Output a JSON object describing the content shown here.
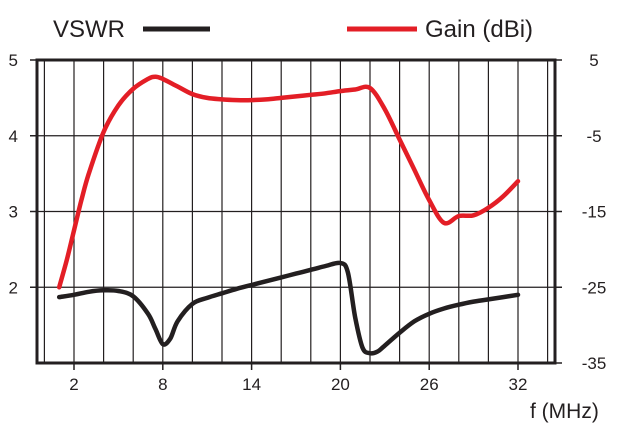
{
  "chart_data": {
    "type": "line",
    "xlabel": "f (MHz)",
    "x_ticks": [
      "2",
      "8",
      "14",
      "20",
      "26",
      "32"
    ],
    "x_tick_values": [
      2,
      8,
      14,
      20,
      26,
      32
    ],
    "xlim": [
      -0.5,
      34.5
    ],
    "y_left": {
      "ticks": [
        "5",
        "4",
        "3",
        "2"
      ],
      "tick_values": [
        5,
        4,
        3,
        2
      ],
      "lim": [
        1,
        5
      ]
    },
    "y_right": {
      "ticks": [
        "5",
        "-5",
        "-15",
        "-25",
        "-35"
      ],
      "tick_values": [
        5,
        -5,
        -15,
        -25,
        -35
      ],
      "lim": [
        -35,
        5
      ]
    },
    "grid": true,
    "legend_position": "top",
    "series": [
      {
        "name": "VSWR",
        "axis": "left",
        "color": "#231f20",
        "x": [
          1,
          2,
          3,
          4,
          5,
          6,
          7,
          7.5,
          8,
          8.5,
          9,
          10,
          11,
          12,
          13,
          14,
          15,
          16,
          17,
          18,
          19,
          20,
          20.5,
          21,
          21.5,
          22,
          22.5,
          23,
          24,
          25,
          26,
          27,
          28,
          29,
          30,
          31,
          32
        ],
        "values": [
          1.87,
          1.9,
          1.94,
          1.96,
          1.95,
          1.88,
          1.65,
          1.45,
          1.25,
          1.32,
          1.55,
          1.78,
          1.86,
          1.92,
          1.98,
          2.03,
          2.08,
          2.13,
          2.18,
          2.23,
          2.28,
          2.32,
          2.2,
          1.6,
          1.2,
          1.13,
          1.15,
          1.23,
          1.4,
          1.55,
          1.65,
          1.72,
          1.77,
          1.81,
          1.84,
          1.87,
          1.9
        ]
      },
      {
        "name": "Gain (dBi)",
        "axis": "right",
        "color": "#e31e26",
        "x": [
          1,
          1.5,
          2,
          2.5,
          3,
          4,
          5,
          6,
          7,
          7.5,
          8,
          9,
          10,
          11,
          12,
          13,
          14,
          15,
          16,
          17,
          18,
          19,
          20,
          21,
          22,
          23,
          24,
          25,
          26,
          27,
          28,
          29,
          30,
          31,
          32
        ],
        "values": [
          -25,
          -21.5,
          -17.5,
          -13.5,
          -10,
          -4.5,
          -1,
          1.2,
          2.5,
          2.8,
          2.5,
          1.5,
          0.5,
          0,
          -0.2,
          -0.3,
          -0.3,
          -0.2,
          0,
          0.2,
          0.4,
          0.6,
          0.9,
          1.1,
          1.3,
          -1.5,
          -5.5,
          -9.5,
          -13.5,
          -16.5,
          -15.6,
          -15.5,
          -14.5,
          -13,
          -11
        ]
      }
    ]
  }
}
